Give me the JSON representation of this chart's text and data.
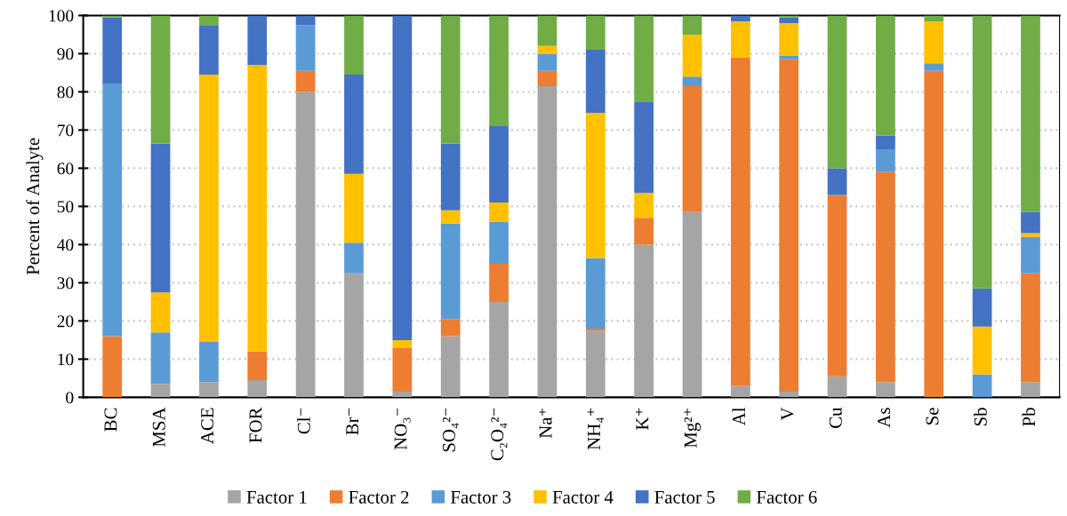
{
  "chart_data": {
    "type": "bar",
    "stacked": true,
    "ylabel": "Percent of Analyte",
    "categories": [
      "BC",
      "MSA",
      "ACE",
      "FOR",
      "Cl⁻",
      "Br⁻",
      "NO₃⁻",
      "SO₄²⁻",
      "C₂O₄²⁻",
      "Na⁺",
      "NH₄⁺",
      "K⁺",
      "Mg²⁺",
      "Al",
      "V",
      "Cu",
      "As",
      "Se",
      "Sb",
      "Pb"
    ],
    "series": [
      {
        "name": "Factor 1",
        "color": "#a5a5a5",
        "values": [
          0,
          3.5,
          4,
          4.5,
          80,
          32.5,
          1.5,
          16,
          25,
          81.5,
          17.5,
          40,
          48.5,
          3,
          1.5,
          5.5,
          4,
          0,
          0,
          4
        ]
      },
      {
        "name": "Factor 2",
        "color": "#ed7d31",
        "values": [
          16,
          0,
          0,
          7.5,
          5.5,
          0,
          11.5,
          4.5,
          10,
          4,
          0.5,
          7,
          33,
          86,
          87,
          47.5,
          55,
          85.5,
          0,
          28.5
        ]
      },
      {
        "name": "Factor 3",
        "color": "#5b9bd5",
        "values": [
          66,
          13.5,
          10.5,
          0,
          12,
          8,
          0,
          25,
          11,
          4.5,
          18.5,
          0,
          2.5,
          0,
          1,
          0,
          6,
          2,
          6,
          9.5
        ]
      },
      {
        "name": "Factor 4",
        "color": "#ffc000",
        "values": [
          0,
          10.5,
          70,
          75,
          0,
          18,
          2,
          3.5,
          5,
          2,
          38,
          6.5,
          11,
          9.5,
          8.5,
          0,
          0,
          11,
          12.5,
          1
        ]
      },
      {
        "name": "Factor 5",
        "color": "#4472c4",
        "values": [
          17.5,
          39,
          13,
          13,
          2.5,
          26,
          85,
          17.5,
          20,
          0,
          16.5,
          24,
          0,
          1.5,
          1.5,
          7,
          3.5,
          0,
          10,
          5.5
        ]
      },
      {
        "name": "Factor 6",
        "color": "#70ad47",
        "values": [
          0.5,
          33.5,
          2.5,
          0,
          0,
          15.5,
          0,
          33.5,
          29,
          8,
          9,
          22.5,
          5,
          0,
          0.5,
          40,
          31.5,
          1.5,
          71.5,
          51.5
        ]
      }
    ],
    "ylim": [
      0,
      100
    ],
    "yticks": [
      0,
      10,
      20,
      30,
      40,
      50,
      60,
      70,
      80,
      90,
      100
    ],
    "grid": "y",
    "legend": "bottom"
  }
}
